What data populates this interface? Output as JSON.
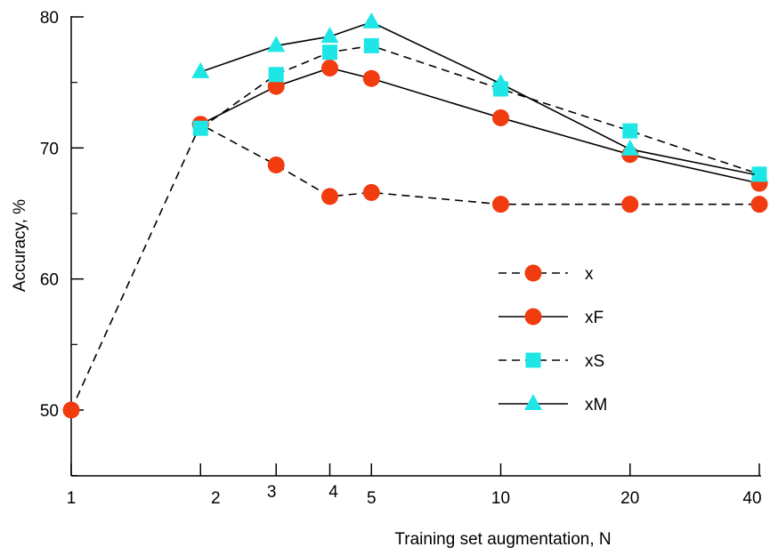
{
  "chart_data": {
    "type": "line",
    "title": "",
    "xlabel": "Training set augmentation, N",
    "ylabel": "Accuracy, %",
    "x_scale": "log",
    "xlim": [
      1,
      40
    ],
    "ylim": [
      45,
      80
    ],
    "x_ticks": [
      1,
      2,
      3,
      4,
      5,
      10,
      20,
      40
    ],
    "x_tick_labels": [
      "1",
      "2",
      "3",
      "4",
      "5",
      "10",
      "20",
      "40"
    ],
    "y_ticks": [
      50,
      60,
      70,
      80
    ],
    "y_tick_labels": [
      "50",
      "60",
      "70",
      "80"
    ],
    "grid": false,
    "legend_position": "center-right",
    "series": [
      {
        "name": "x",
        "line": "dashed",
        "marker": "circle",
        "color": "#f03c0f",
        "points": [
          [
            1,
            50.0
          ],
          [
            2,
            71.8
          ],
          [
            3,
            68.7
          ],
          [
            4,
            66.3
          ],
          [
            5,
            66.6
          ],
          [
            10,
            65.7
          ],
          [
            20,
            65.7
          ],
          [
            40,
            65.7
          ]
        ]
      },
      {
        "name": "xF",
        "line": "solid",
        "marker": "circle",
        "color": "#f03c0f",
        "points": [
          [
            2,
            71.8
          ],
          [
            3,
            74.7
          ],
          [
            4,
            76.1
          ],
          [
            5,
            75.3
          ],
          [
            10,
            72.3
          ],
          [
            20,
            69.5
          ],
          [
            40,
            67.3
          ]
        ]
      },
      {
        "name": "xS",
        "line": "dashed",
        "marker": "square",
        "color": "#1fe6e6",
        "points": [
          [
            2,
            71.5
          ],
          [
            3,
            75.6
          ],
          [
            4,
            77.3
          ],
          [
            5,
            77.8
          ],
          [
            10,
            74.5
          ],
          [
            20,
            71.3
          ],
          [
            40,
            68.0
          ]
        ]
      },
      {
        "name": "xM",
        "line": "solid",
        "marker": "triangle",
        "color": "#1fe6e6",
        "points": [
          [
            2,
            75.8
          ],
          [
            3,
            77.8
          ],
          [
            4,
            78.5
          ],
          [
            5,
            79.6
          ],
          [
            10,
            74.9
          ],
          [
            20,
            69.9
          ],
          [
            40,
            67.9
          ]
        ]
      }
    ]
  }
}
